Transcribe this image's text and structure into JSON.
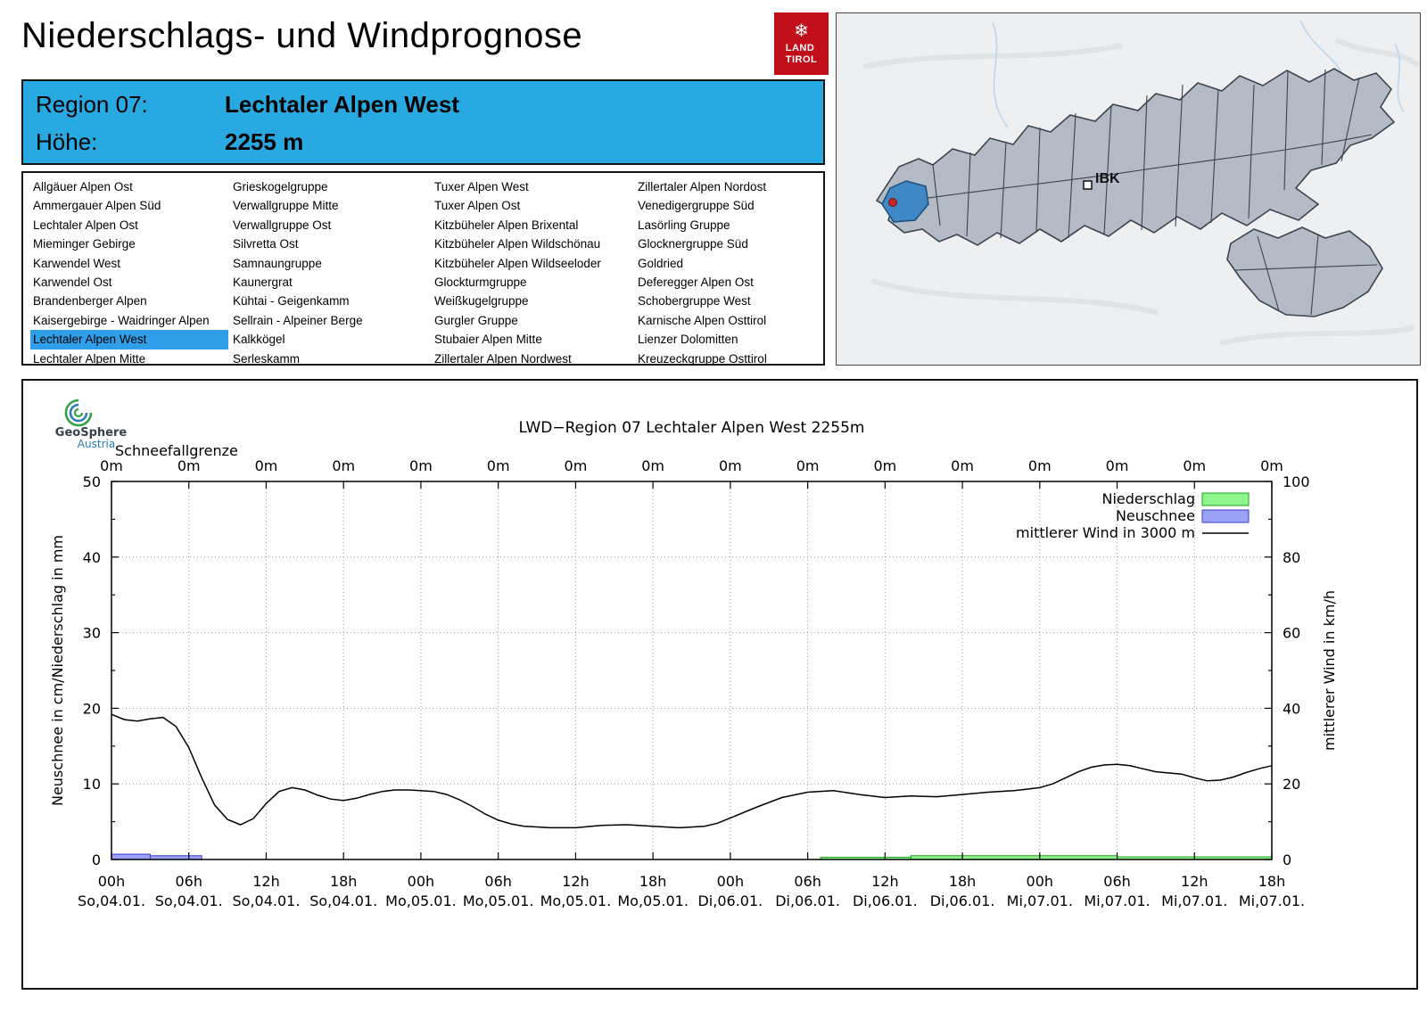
{
  "header": {
    "title": "Niederschlags- und Windprognose",
    "logo": {
      "line1": "LAND",
      "line2": "TIROL",
      "color": "#c20e1a"
    }
  },
  "region_info": {
    "region_label": "Region 07:",
    "region_name": "Lechtaler Alpen West",
    "altitude_label": "Höhe:",
    "altitude_value": "2255 m"
  },
  "region_list": {
    "selected": "Lechtaler Alpen West",
    "columns": [
      [
        "Allgäuer Alpen Ost",
        "Ammergauer Alpen Süd",
        "Lechtaler Alpen Ost",
        "Mieminger Gebirge",
        "Karwendel West",
        "Karwendel Ost",
        "Brandenberger Alpen",
        "Kaisergebirge - Waidringer Alpen",
        "Lechtaler Alpen West",
        "Lechtaler Alpen Mitte"
      ],
      [
        "Grieskogelgruppe",
        "Verwallgruppe Mitte",
        "Verwallgruppe Ost",
        "Silvretta Ost",
        "Samnaungruppe",
        "Kaunergrat",
        "Kühtai - Geigenkamm",
        "Sellrain - Alpeiner Berge",
        "Kalkkögel",
        "Serleskamm"
      ],
      [
        "Tuxer Alpen West",
        "Tuxer Alpen Ost",
        "Kitzbüheler Alpen Brixental",
        "Kitzbüheler Alpen Wildschönau",
        "Kitzbüheler Alpen Wildseeloder",
        "Glockturmgruppe",
        "Weißkugelgruppe",
        "Gurgler Gruppe",
        "Stubaier Alpen Mitte",
        "Zillertaler Alpen Nordwest"
      ],
      [
        "Zillertaler Alpen Nordost",
        "Venedigergruppe Süd",
        "Lasörling Gruppe",
        "Glocknergruppe Süd",
        "Goldried",
        "Deferegger Alpen Ost",
        "Schobergruppe West",
        "Karnische Alpen Osttirol",
        "Lienzer Dolomitten",
        "Kreuzeckgruppe Osttirol"
      ]
    ]
  },
  "map": {
    "city_label": "IBK"
  },
  "geosphere_logo": {
    "name": "GeoSphere",
    "sub": "Austria"
  },
  "colors": {
    "accent_blue": "#29a9e2",
    "selected_blue": "#2e9fe8",
    "map_highlight": "#3f88c5",
    "logo_red": "#c20e1a"
  },
  "chart_data": {
    "type": "line",
    "title": "LWD−Region 07 Lechtaler Alpen West 2255m",
    "snowline_label": "Schneefallgrenze",
    "snowline_values": [
      "0m",
      "0m",
      "0m",
      "0m",
      "0m",
      "0m",
      "0m",
      "0m",
      "0m",
      "0m",
      "0m",
      "0m",
      "0m",
      "0m",
      "0m",
      "0m"
    ],
    "ylabel_left": "Neuschnee in cm/Niederschlag in mm",
    "ylabel_right": "mittlerer Wind in km/h",
    "ylim_left": [
      0,
      50
    ],
    "ylim_right": [
      0,
      100
    ],
    "yticks_left": [
      0,
      10,
      20,
      30,
      40,
      50
    ],
    "yticks_right": [
      0,
      20,
      40,
      60,
      80,
      100
    ],
    "xlim_hours": [
      0,
      90
    ],
    "grid": "dotted",
    "legend_position": "top-right",
    "xticks": [
      {
        "hour": "00h",
        "date": "So,04.01."
      },
      {
        "hour": "06h",
        "date": "So,04.01."
      },
      {
        "hour": "12h",
        "date": "So,04.01."
      },
      {
        "hour": "18h",
        "date": "So,04.01."
      },
      {
        "hour": "00h",
        "date": "Mo,05.01."
      },
      {
        "hour": "06h",
        "date": "Mo,05.01."
      },
      {
        "hour": "12h",
        "date": "Mo,05.01."
      },
      {
        "hour": "18h",
        "date": "Mo,05.01."
      },
      {
        "hour": "00h",
        "date": "Di,06.01."
      },
      {
        "hour": "06h",
        "date": "Di,06.01."
      },
      {
        "hour": "12h",
        "date": "Di,06.01."
      },
      {
        "hour": "18h",
        "date": "Di,06.01."
      },
      {
        "hour": "00h",
        "date": "Mi,07.01."
      },
      {
        "hour": "06h",
        "date": "Mi,07.01."
      },
      {
        "hour": "12h",
        "date": "Mi,07.01."
      },
      {
        "hour": "18h",
        "date": "Mi,07.01."
      }
    ],
    "legend": [
      {
        "label": "Niederschlag",
        "swatch": "box",
        "fill": "#8cf58c",
        "stroke": "#1f9e1f"
      },
      {
        "label": "Neuschnee",
        "swatch": "box",
        "fill": "#9aa2f5",
        "stroke": "#3b3bd1"
      },
      {
        "label": "mittlerer Wind in 3000 m",
        "swatch": "line",
        "stroke": "#000000"
      }
    ],
    "wind_series": {
      "name": "mittlerer Wind in 3000 m",
      "plotted_axis": "left",
      "points": [
        [
          0,
          19.2
        ],
        [
          1,
          18.5
        ],
        [
          2,
          18.3
        ],
        [
          3,
          18.6
        ],
        [
          4,
          18.8
        ],
        [
          5,
          17.6
        ],
        [
          6,
          14.8
        ],
        [
          7,
          10.8
        ],
        [
          8,
          7.2
        ],
        [
          9,
          5.3
        ],
        [
          10,
          4.6
        ],
        [
          11,
          5.4
        ],
        [
          12,
          7.4
        ],
        [
          13,
          9.0
        ],
        [
          14,
          9.5
        ],
        [
          15,
          9.2
        ],
        [
          16,
          8.5
        ],
        [
          17,
          8.0
        ],
        [
          18,
          7.8
        ],
        [
          19,
          8.1
        ],
        [
          20,
          8.6
        ],
        [
          21,
          9.0
        ],
        [
          22,
          9.2
        ],
        [
          23,
          9.2
        ],
        [
          24,
          9.1
        ],
        [
          25,
          9.0
        ],
        [
          26,
          8.6
        ],
        [
          27,
          7.9
        ],
        [
          28,
          7.0
        ],
        [
          29,
          6.0
        ],
        [
          30,
          5.2
        ],
        [
          31,
          4.7
        ],
        [
          32,
          4.4
        ],
        [
          33,
          4.3
        ],
        [
          34,
          4.2
        ],
        [
          36,
          4.2
        ],
        [
          38,
          4.5
        ],
        [
          40,
          4.6
        ],
        [
          42,
          4.4
        ],
        [
          44,
          4.2
        ],
        [
          46,
          4.4
        ],
        [
          47,
          4.8
        ],
        [
          48,
          5.5
        ],
        [
          50,
          6.9
        ],
        [
          52,
          8.2
        ],
        [
          54,
          8.9
        ],
        [
          56,
          9.1
        ],
        [
          58,
          8.6
        ],
        [
          60,
          8.2
        ],
        [
          62,
          8.4
        ],
        [
          64,
          8.3
        ],
        [
          66,
          8.6
        ],
        [
          68,
          8.9
        ],
        [
          70,
          9.1
        ],
        [
          71,
          9.3
        ],
        [
          72,
          9.5
        ],
        [
          73,
          10.0
        ],
        [
          74,
          10.8
        ],
        [
          75,
          11.6
        ],
        [
          76,
          12.2
        ],
        [
          77,
          12.5
        ],
        [
          78,
          12.6
        ],
        [
          79,
          12.4
        ],
        [
          80,
          12.0
        ],
        [
          81,
          11.6
        ],
        [
          83,
          11.3
        ],
        [
          84,
          10.8
        ],
        [
          85,
          10.4
        ],
        [
          86,
          10.5
        ],
        [
          87,
          10.9
        ],
        [
          88,
          11.5
        ],
        [
          89,
          12.0
        ],
        [
          90,
          12.4
        ]
      ]
    },
    "neuschnee_bars": [
      {
        "start": 0,
        "end": 3,
        "value": 0.7
      },
      {
        "start": 3,
        "end": 7,
        "value": 0.5
      }
    ],
    "niederschlag_bars": [
      {
        "start": 55,
        "end": 62,
        "value": 0.3
      },
      {
        "start": 62,
        "end": 78,
        "value": 0.5
      },
      {
        "start": 78,
        "end": 90,
        "value": 0.35
      }
    ]
  }
}
